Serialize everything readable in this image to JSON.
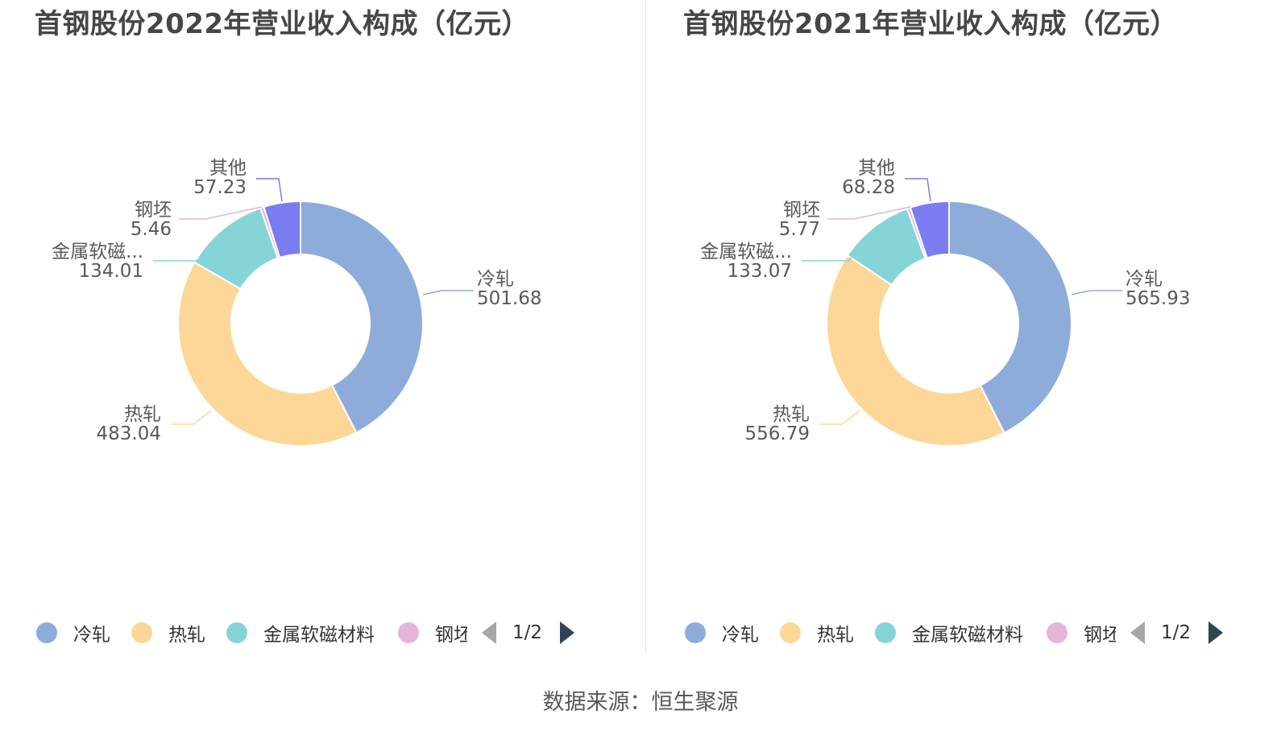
{
  "source_text": "数据来源：恒生聚源",
  "pager_text": "1/2",
  "colors": {
    "cold_rolled": "#8eacd9",
    "hot_rolled": "#fdd797",
    "soft_magnetic": "#86d4d8",
    "billet": "#e6b4d8",
    "other": "#7b7cf2"
  },
  "chart_data": [
    {
      "type": "pie",
      "title": "首钢股份2022年营业收入构成（亿元）",
      "slices": [
        {
          "name": "冷轧",
          "label": "冷轧",
          "value": 501.68,
          "value_text": "501.68",
          "color": "#8eacd9"
        },
        {
          "name": "热轧",
          "label": "热轧",
          "value": 483.04,
          "value_text": "483.04",
          "color": "#fdd797"
        },
        {
          "name": "金属软磁材料",
          "label": "金属软磁...",
          "value": 134.01,
          "value_text": "134.01",
          "color": "#86d4d8"
        },
        {
          "name": "钢坯",
          "label": "钢坯",
          "value": 5.46,
          "value_text": "5.46",
          "color": "#e6b4d8"
        },
        {
          "name": "其他",
          "label": "其他",
          "value": 57.23,
          "value_text": "57.23",
          "color": "#7b7cf2"
        }
      ],
      "legend": [
        "冷轧",
        "热轧",
        "金属软磁材料",
        "钢坯"
      ]
    },
    {
      "type": "pie",
      "title": "首钢股份2021年营业收入构成（亿元）",
      "slices": [
        {
          "name": "冷轧",
          "label": "冷轧",
          "value": 565.93,
          "value_text": "565.93",
          "color": "#8eacd9"
        },
        {
          "name": "热轧",
          "label": "热轧",
          "value": 556.79,
          "value_text": "556.79",
          "color": "#fdd797"
        },
        {
          "name": "金属软磁材料",
          "label": "金属软磁...",
          "value": 133.07,
          "value_text": "133.07",
          "color": "#86d4d8"
        },
        {
          "name": "钢坯",
          "label": "钢坯",
          "value": 5.77,
          "value_text": "5.77",
          "color": "#e6b4d8"
        },
        {
          "name": "其他",
          "label": "其他",
          "value": 68.28,
          "value_text": "68.28",
          "color": "#7b7cf2"
        }
      ],
      "legend": [
        "冷轧",
        "热轧",
        "金属软磁材料",
        "钢坯"
      ]
    }
  ]
}
